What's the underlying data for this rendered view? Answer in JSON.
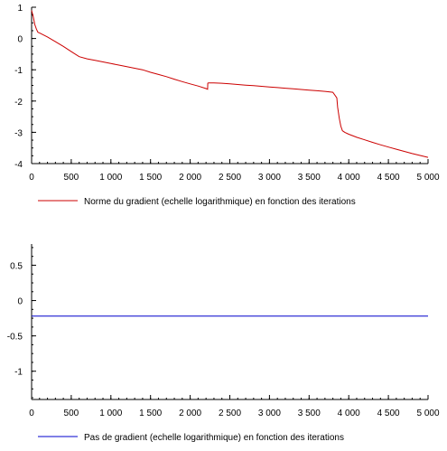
{
  "chart_data": [
    {
      "type": "line",
      "xlim": [
        0,
        5000
      ],
      "ylim": [
        -4,
        1
      ],
      "xticks": [
        0,
        500,
        1000,
        1500,
        2000,
        2500,
        3000,
        3500,
        4000,
        4500,
        5000
      ],
      "xtick_labels": [
        "0",
        "500",
        "1 000",
        "1 500",
        "2 000",
        "2 500",
        "3 000",
        "3 500",
        "4 000",
        "4 500",
        "5 000"
      ],
      "yticks": [
        1,
        0,
        -1,
        -2,
        -3,
        -4
      ],
      "ytick_labels": [
        "1",
        "0",
        "-1",
        "-2",
        "-3",
        "-4"
      ],
      "grid": false,
      "legend_position": "bottom-left",
      "series": [
        {
          "name": "Norme du gradient (echelle logarithmique) en fonction des iterations",
          "color": "#cc0000",
          "x": [
            0,
            20,
            40,
            60,
            80,
            100,
            200,
            300,
            400,
            500,
            600,
            700,
            800,
            900,
            1000,
            1100,
            1200,
            1300,
            1400,
            1500,
            1600,
            1700,
            1800,
            1900,
            2000,
            2100,
            2200,
            2220,
            2222,
            2230,
            2300,
            2400,
            2500,
            2600,
            2700,
            2800,
            2900,
            3000,
            3100,
            3200,
            3300,
            3400,
            3500,
            3600,
            3700,
            3800,
            3850,
            3860,
            3880,
            3900,
            3920,
            3950,
            4000,
            4100,
            4200,
            4300,
            4400,
            4500,
            4600,
            4700,
            4800,
            4900,
            5000
          ],
          "y": [
            0.9,
            0.7,
            0.45,
            0.3,
            0.2,
            0.18,
            0.05,
            -0.1,
            -0.25,
            -0.42,
            -0.58,
            -0.65,
            -0.7,
            -0.75,
            -0.8,
            -0.85,
            -0.9,
            -0.95,
            -1.0,
            -1.08,
            -1.15,
            -1.22,
            -1.3,
            -1.38,
            -1.45,
            -1.52,
            -1.6,
            -1.62,
            -1.43,
            -1.42,
            -1.42,
            -1.43,
            -1.45,
            -1.47,
            -1.49,
            -1.51,
            -1.53,
            -1.55,
            -1.57,
            -1.59,
            -1.61,
            -1.63,
            -1.65,
            -1.67,
            -1.69,
            -1.72,
            -1.9,
            -2.2,
            -2.55,
            -2.8,
            -2.95,
            -3.0,
            -3.06,
            -3.16,
            -3.24,
            -3.32,
            -3.4,
            -3.47,
            -3.54,
            -3.61,
            -3.68,
            -3.74,
            -3.8
          ]
        }
      ]
    },
    {
      "type": "line",
      "xlim": [
        0,
        5000
      ],
      "ylim": [
        -1.4,
        0.8
      ],
      "xticks": [
        0,
        500,
        1000,
        1500,
        2000,
        2500,
        3000,
        3500,
        4000,
        4500,
        5000
      ],
      "xtick_labels": [
        "0",
        "500",
        "1 000",
        "1 500",
        "2 000",
        "2 500",
        "3 000",
        "3 500",
        "4 000",
        "4 500",
        "5 000"
      ],
      "yticks": [
        0.5,
        0,
        -0.5,
        -1
      ],
      "ytick_labels": [
        "0.5",
        "0",
        "-0.5",
        "-1"
      ],
      "grid": false,
      "legend_position": "bottom-left",
      "series": [
        {
          "name": "Pas de gradient (echelle logarithmique) en fonction des iterations",
          "color": "#0000cc",
          "x": [
            0,
            5000
          ],
          "y": [
            -0.22,
            -0.22
          ]
        }
      ]
    }
  ]
}
